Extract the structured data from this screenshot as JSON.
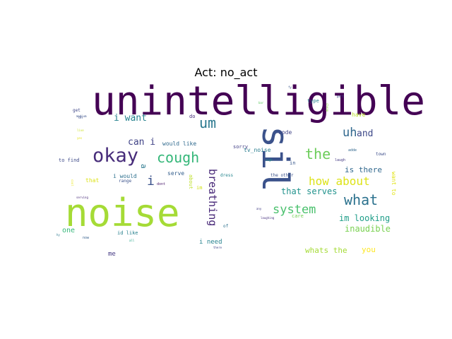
{
  "title": "Act: no_act",
  "words": [
    {
      "text": "unintelligible",
      "color": "#440154"
    },
    {
      "text": "noise",
      "color": "#a5db36"
    },
    {
      "text": "sil",
      "color": "#3b528b"
    },
    {
      "text": "okay",
      "color": "#472c7a"
    },
    {
      "text": "cough",
      "color": "#35b779"
    },
    {
      "text": "um",
      "color": "#2a788e"
    },
    {
      "text": "the",
      "color": "#6ccd5a"
    },
    {
      "text": "uh",
      "color": "#31688e"
    },
    {
      "text": "and",
      "color": "#3e4989"
    },
    {
      "text": "what",
      "color": "#2c728e"
    },
    {
      "text": "how about",
      "color": "#dde318"
    },
    {
      "text": "system",
      "color": "#4ac16d"
    },
    {
      "text": "breathing",
      "color": "#482878"
    },
    {
      "text": "i want",
      "color": "#26828e"
    },
    {
      "text": "can i",
      "color": "#414487"
    },
    {
      "text": "i",
      "color": "#3b528b"
    },
    {
      "text": "a",
      "color": "#2a788e"
    },
    {
      "text": "that serves",
      "color": "#20928c"
    },
    {
      "text": "is there",
      "color": "#31688e"
    },
    {
      "text": "im looking",
      "color": "#1f9e89"
    },
    {
      "text": "inaudible",
      "color": "#7ad151"
    },
    {
      "text": "whats the",
      "color": "#a5db36"
    },
    {
      "text": "you",
      "color": "#fde725"
    },
    {
      "text": "i need",
      "color": "#26828e"
    },
    {
      "text": "code",
      "color": "#414487"
    },
    {
      "text": "tv_noise",
      "color": "#287c8e"
    },
    {
      "text": "sorry",
      "color": "#424086"
    },
    {
      "text": "would like",
      "color": "#306a8e"
    },
    {
      "text": "i would",
      "color": "#2d708e"
    },
    {
      "text": "serve",
      "color": "#355f8d"
    },
    {
      "text": "about",
      "color": "#bddf26"
    },
    {
      "text": "in",
      "color": "#38588c"
    },
    {
      "text": "want to",
      "color": "#e2e418"
    },
    {
      "text": "one",
      "color": "#35b779"
    },
    {
      "text": "me",
      "color": "#443983"
    },
    {
      "text": "id like",
      "color": "#27808e"
    },
    {
      "text": "to find",
      "color": "#3e4a89"
    },
    {
      "text": "have",
      "color": "#b8de29"
    },
    {
      "text": "type",
      "color": "#277f8e"
    },
    {
      "text": "do",
      "color": "#472d7b"
    },
    {
      "text": "get",
      "color": "#3f4788"
    },
    {
      "text": "that",
      "color": "#dde318"
    },
    {
      "text": "range",
      "color": "#3b528b"
    },
    {
      "text": "dont",
      "color": "#48186a"
    },
    {
      "text": "dress",
      "color": "#25858e"
    },
    {
      "text": "the other",
      "color": "#3b528b"
    },
    {
      "text": "care",
      "color": "#73d056"
    },
    {
      "text": "of",
      "color": "#2c718e"
    },
    {
      "text": "im",
      "color": "#d2e21b"
    },
    {
      "text": "town",
      "color": "#3d4e8a"
    },
    {
      "text": "adde",
      "color": "#31688e"
    },
    {
      "text": "laugh",
      "color": "#443a83"
    },
    {
      "text": "sigh",
      "color": "#1f998a"
    },
    {
      "text": "laughing",
      "color": "#46307e"
    },
    {
      "text": "any",
      "color": "#433e85"
    },
    {
      "text": "now",
      "color": "#355f8d"
    },
    {
      "text": "all",
      "color": "#20a486"
    },
    {
      "text": "there",
      "color": "#404688"
    },
    {
      "text": "oh",
      "color": "#3c4f8a"
    },
    {
      "text": "serving",
      "color": "#472a7a"
    },
    {
      "text": "medium",
      "color": "#3b528b"
    },
    {
      "text": "live",
      "color": "#c8e020"
    },
    {
      "text": "yes",
      "color": "#e5e419"
    },
    {
      "text": "hy",
      "color": "#2a778e"
    },
    {
      "text": "fy",
      "color": "#39568c"
    },
    {
      "text": "cheap",
      "color": "#8fd744"
    },
    {
      "text": "part",
      "color": "#3c4f8a"
    },
    {
      "text": "bar",
      "color": "#5ec962"
    },
    {
      "text": "cool",
      "color": "#eae51a"
    }
  ]
}
